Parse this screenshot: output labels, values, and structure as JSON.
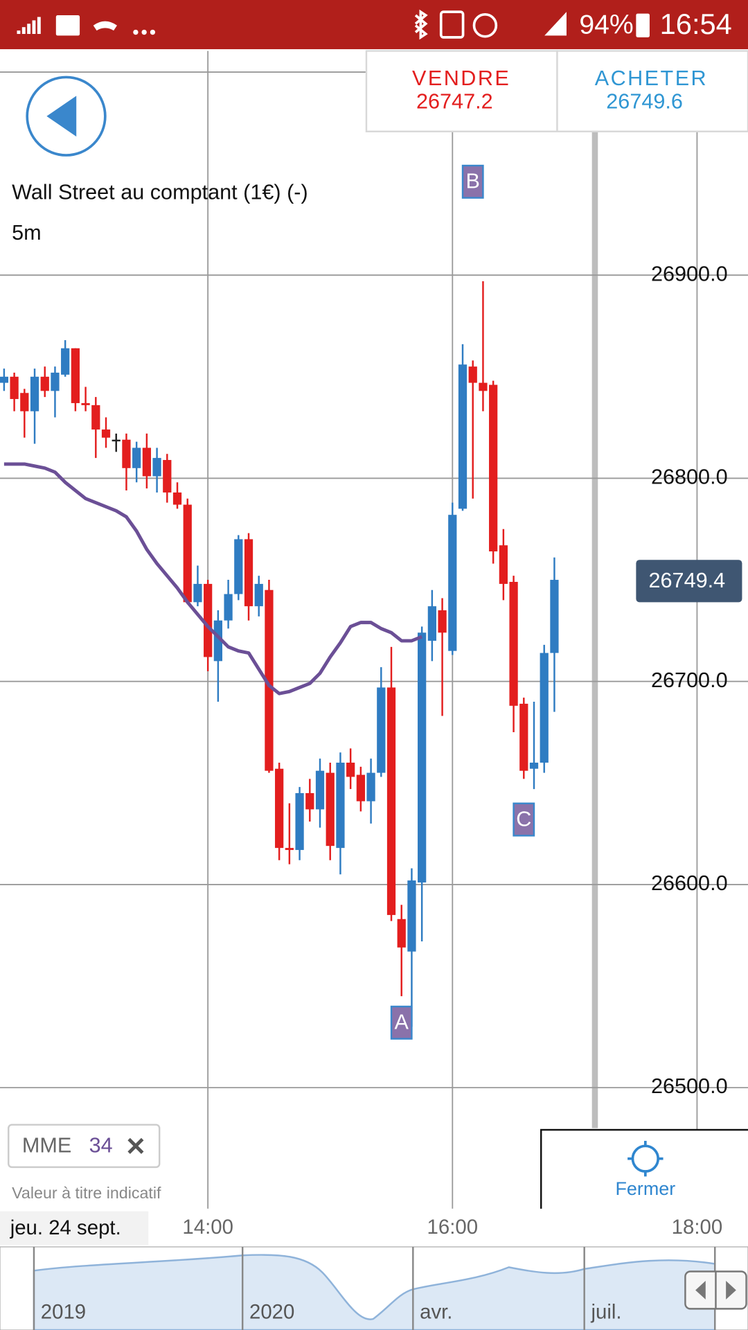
{
  "status_bar": {
    "battery": "94%",
    "time": "16:54"
  },
  "quote": {
    "sell_label": "VENDRE",
    "sell_price": 26747.2,
    "buy_label": "ACHETER",
    "buy_price": 26749.6
  },
  "instrument": "Wall Street au comptant (1€) (-)",
  "timeframe": "5m",
  "chart_data": {
    "type": "candlestick",
    "x": [
      "12:20",
      "12:25",
      "12:30",
      "12:35",
      "12:40",
      "12:45",
      "12:50",
      "12:55",
      "13:00",
      "13:05",
      "13:10",
      "13:15",
      "13:20",
      "13:25",
      "13:30",
      "13:35",
      "13:40",
      "13:45",
      "13:50",
      "13:55",
      "14:00",
      "14:05",
      "14:10",
      "14:15",
      "14:20",
      "14:25",
      "14:30",
      "14:35",
      "14:40",
      "14:45",
      "14:50",
      "14:55",
      "15:00",
      "15:05",
      "15:10",
      "15:15",
      "15:20",
      "15:25",
      "15:30",
      "15:35",
      "15:40",
      "15:45",
      "15:50",
      "15:55",
      "16:00",
      "16:05",
      "16:10",
      "16:15",
      "16:20",
      "16:25",
      "16:30",
      "16:35",
      "16:40",
      "16:45",
      "16:50"
    ],
    "open": [
      26847,
      26850,
      26842,
      26833,
      26850,
      26843,
      26851,
      26864,
      26837,
      26836,
      26824,
      26819,
      26819,
      26805,
      26815,
      26801,
      26809,
      26793,
      26787,
      26739,
      26748,
      26710,
      26730,
      26743,
      26770,
      26737,
      26745,
      26657,
      26618,
      26617,
      26645,
      26637,
      26655,
      26618,
      26660,
      26654,
      26641,
      26655,
      26697,
      26583,
      26567,
      26601,
      26720,
      26735,
      26715,
      26785,
      26855,
      26847,
      26846,
      26767,
      26749,
      26689,
      26657,
      26660,
      26714
    ],
    "high": [
      26854,
      26852,
      26844,
      26854,
      26855,
      26855,
      26868,
      26864,
      26845,
      26840,
      26830,
      26822,
      26822,
      26818,
      26822,
      26815,
      26812,
      26798,
      26790,
      26757,
      26750,
      26735,
      26750,
      26772,
      26773,
      26752,
      26750,
      26660,
      26640,
      26648,
      26652,
      26662,
      26660,
      26665,
      26667,
      26658,
      26662,
      26707,
      26717,
      26590,
      26608,
      26727,
      26745,
      26741,
      26788,
      26866,
      26858,
      26897,
      26848,
      26775,
      26752,
      26692,
      26690,
      26718,
      26761
    ],
    "low": [
      26843,
      26833,
      26820,
      26817,
      26840,
      26830,
      26850,
      26833,
      26833,
      26810,
      26815,
      26813,
      26794,
      26798,
      26795,
      26793,
      26788,
      26785,
      26738,
      26737,
      26705,
      26690,
      26726,
      26740,
      26730,
      26732,
      26655,
      26612,
      26610,
      26612,
      26631,
      26628,
      26612,
      26605,
      26647,
      26636,
      26630,
      26653,
      26582,
      26545,
      26530,
      26572,
      26710,
      26683,
      26713,
      26784,
      26790,
      26833,
      26758,
      26740,
      26675,
      26652,
      26647,
      26655,
      26685
    ],
    "close": [
      26850,
      26839,
      26833,
      26850,
      26843,
      26852,
      26864,
      26837,
      26836,
      26824,
      26820,
      26819,
      26805,
      26815,
      26801,
      26810,
      26793,
      26787,
      26739,
      26748,
      26712,
      26730,
      26743,
      26770,
      26737,
      26748,
      26656,
      26618,
      26617,
      26645,
      26637,
      26656,
      26619,
      26660,
      26653,
      26641,
      26655,
      26697,
      26585,
      26569,
      26602,
      26724,
      26737,
      26724,
      26782,
      26856,
      26847,
      26843,
      26764,
      26748,
      26688,
      26656,
      26660,
      26714,
      26750
    ],
    "up_color": "#2f7cc2",
    "down_color": "#e31e1e",
    "doji_color": "#222222",
    "ema": {
      "name": "MME",
      "period": 34,
      "color": "#6b4f96",
      "values": [
        26807,
        26807,
        26807,
        26806,
        26805,
        26803,
        26798,
        26794,
        26790,
        26788,
        26786,
        26784,
        26781,
        26774,
        26765,
        26758,
        26752,
        26746,
        26739,
        26733,
        26727,
        26722,
        26717,
        26715,
        26714,
        26706,
        26698,
        26694,
        26695,
        26697,
        26699,
        26704,
        26712,
        26719,
        26727,
        26729,
        26729,
        26726,
        26724,
        26720,
        26720,
        26722,
        null,
        null,
        null,
        null,
        null,
        null,
        null,
        null,
        null,
        null,
        null,
        null,
        null
      ]
    },
    "xlim": [
      "12:18",
      "18:25"
    ],
    "xticks": [
      "14:00",
      "16:00",
      "18:00"
    ],
    "ylim": [
      26440.4,
      27010.4
    ],
    "yticks": [
      {
        "value": 26500,
        "label": "26500.0"
      },
      {
        "value": 26600,
        "label": "26600.0"
      },
      {
        "value": 26700,
        "label": "26700.0"
      },
      {
        "value": 26800,
        "label": "26800.0"
      },
      {
        "value": 26900,
        "label": "26900.0"
      }
    ],
    "grid": true,
    "last_price": 26749.4,
    "date_label": "jeu. 24 sept.",
    "annotations": [
      {
        "label": "A",
        "x": "15:35",
        "y": 26532
      },
      {
        "label": "B",
        "x": "16:10",
        "y": 26946
      },
      {
        "label": "C",
        "x": "16:35",
        "y": 26632
      }
    ]
  },
  "disclaimer": "Valeur à titre indicatif",
  "close_button": "Fermer",
  "navigator": {
    "labels": [
      "2019",
      "2020",
      "avr.",
      "juil."
    ]
  }
}
